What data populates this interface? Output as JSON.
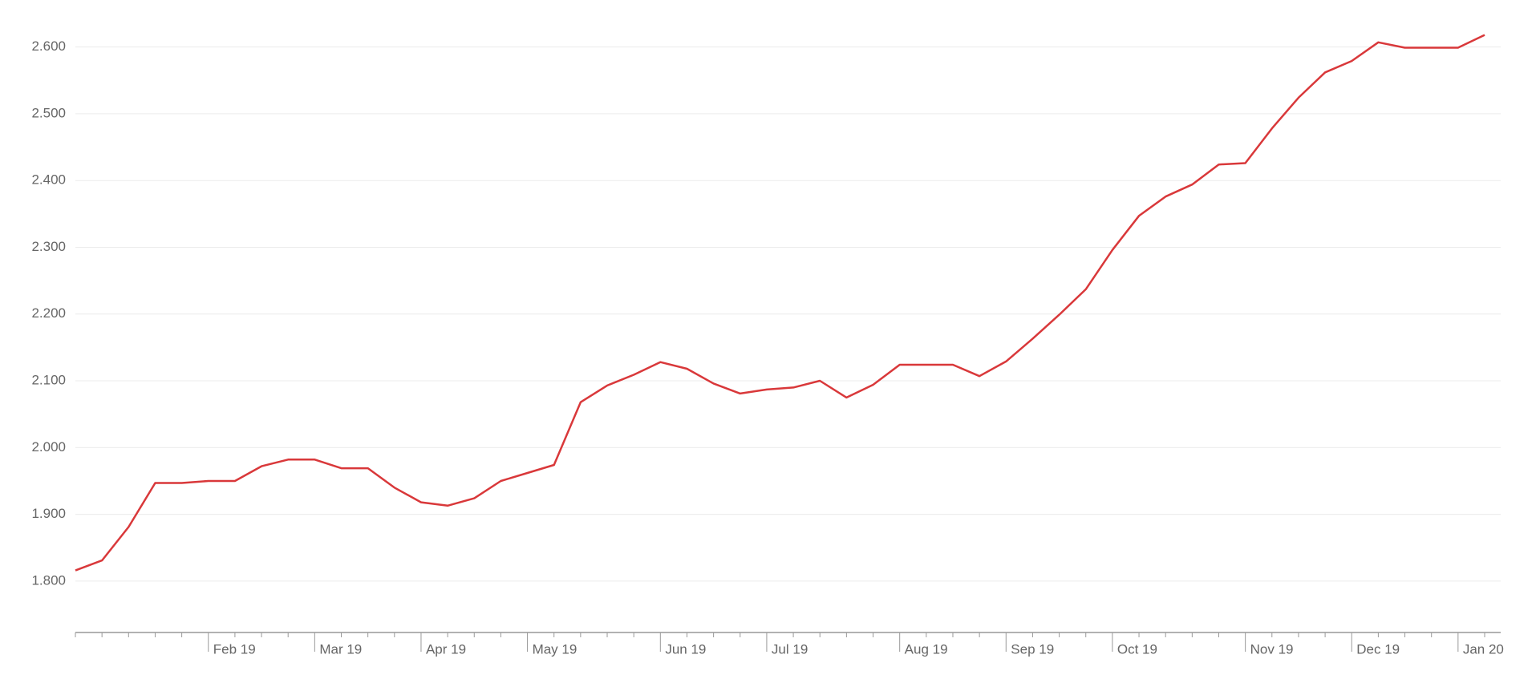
{
  "chart_data": {
    "type": "line",
    "categories": [
      null,
      null,
      null,
      null,
      null,
      "Feb 19",
      null,
      null,
      null,
      "Mar 19",
      null,
      null,
      null,
      "Apr 19",
      null,
      null,
      null,
      "May 19",
      null,
      null,
      null,
      null,
      "Jun 19",
      null,
      null,
      null,
      "Jul 19",
      null,
      null,
      null,
      null,
      "Aug 19",
      null,
      null,
      null,
      "Sep 19",
      null,
      null,
      null,
      "Oct 19",
      null,
      null,
      null,
      null,
      "Nov 19",
      null,
      null,
      null,
      "Dec 19",
      null,
      null,
      null,
      "Jan 20",
      null
    ],
    "series": [
      {
        "color": "#d9383a",
        "values": [
          1816,
          1831,
          1881,
          1947,
          1947,
          1950,
          1950,
          1972,
          1982,
          1982,
          1969,
          1969,
          1940,
          1918,
          1913,
          1924,
          1950,
          1962,
          1974,
          2068,
          2093,
          2109,
          2128,
          2118,
          2096,
          2081,
          2087,
          2090,
          2100,
          2075,
          2094,
          2124,
          2124,
          2124,
          2107,
          2129,
          2163,
          2199,
          2237,
          2296,
          2347,
          2376,
          2394,
          2424,
          2426,
          2478,
          2524,
          2562,
          2579,
          2607,
          2599,
          2599,
          2599,
          2618
        ]
      }
    ],
    "ylim": [
      1723,
      2650
    ],
    "yticks": [
      {
        "value": 1800,
        "label": "1.800"
      },
      {
        "value": 1900,
        "label": "1.900"
      },
      {
        "value": 2000,
        "label": "2.000"
      },
      {
        "value": 2100,
        "label": "2.100"
      },
      {
        "value": 2200,
        "label": "2.200"
      },
      {
        "value": 2300,
        "label": "2.300"
      },
      {
        "value": 2400,
        "label": "2.400"
      },
      {
        "value": 2500,
        "label": "2.500"
      },
      {
        "value": 2600,
        "label": "2.600"
      }
    ],
    "grid": true
  }
}
